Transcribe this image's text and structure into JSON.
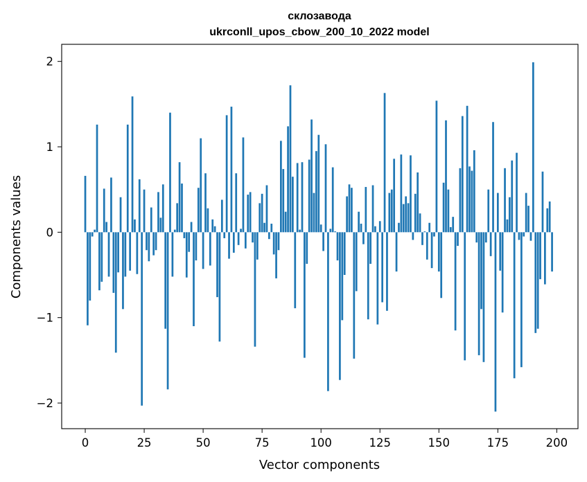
{
  "chart_data": {
    "type": "bar",
    "title_line1": "склозавода",
    "title_line2": "ukrconll_upos_cbow_200_10_2022 model",
    "xlabel": "Vector components",
    "ylabel": "Components values",
    "xlim": [
      -10,
      209
    ],
    "ylim": [
      -2.3,
      2.2
    ],
    "x_ticks": [
      0,
      25,
      50,
      75,
      100,
      125,
      150,
      175,
      200
    ],
    "x_tick_labels": [
      "0",
      "25",
      "50",
      "75",
      "100",
      "125",
      "150",
      "175",
      "200"
    ],
    "y_ticks": [
      -2,
      -1,
      0,
      1,
      2
    ],
    "y_tick_labels": [
      "−2",
      "−1",
      "0",
      "1",
      "2"
    ],
    "bar_color": "#1f77b4",
    "grid": false,
    "values": [
      0.66,
      -1.09,
      -0.8,
      -0.05,
      0.03,
      1.26,
      -0.68,
      -0.58,
      0.51,
      0.12,
      -0.52,
      0.64,
      -0.71,
      -1.41,
      -0.47,
      0.41,
      -0.9,
      -0.52,
      1.26,
      -0.45,
      1.59,
      0.15,
      -0.49,
      0.62,
      -2.03,
      0.5,
      -0.21,
      -0.34,
      0.29,
      -0.27,
      -0.21,
      0.47,
      0.17,
      0.56,
      -1.13,
      -1.84,
      1.4,
      -0.52,
      0.03,
      0.34,
      0.82,
      0.57,
      -0.07,
      -0.53,
      -0.23,
      0.12,
      -1.1,
      -0.33,
      0.52,
      1.1,
      -0.43,
      0.69,
      0.28,
      -0.39,
      0.15,
      0.07,
      -0.76,
      -1.28,
      0.38,
      -0.07,
      1.37,
      -0.31,
      1.47,
      -0.24,
      0.69,
      -0.15,
      0.04,
      1.11,
      -0.19,
      0.44,
      0.47,
      -0.12,
      -1.34,
      -0.32,
      0.34,
      0.45,
      0.11,
      0.55,
      -0.08,
      0.1,
      -0.26,
      -0.54,
      -0.21,
      1.07,
      0.74,
      0.24,
      1.24,
      1.72,
      0.65,
      -0.89,
      0.81,
      0.03,
      0.82,
      -1.47,
      -0.37,
      0.85,
      1.32,
      0.46,
      0.95,
      1.14,
      0.09,
      -0.22,
      1.03,
      -1.86,
      0.04,
      0.76,
      0.01,
      -0.33,
      -1.73,
      -1.03,
      -0.5,
      0.42,
      0.56,
      0.52,
      -1.48,
      -0.69,
      0.24,
      0.1,
      -0.14,
      0.53,
      -1.02,
      -0.37,
      0.55,
      0.07,
      -1.08,
      0.13,
      -0.82,
      1.63,
      -0.92,
      0.46,
      0.5,
      0.86,
      -0.46,
      0.11,
      0.91,
      0.33,
      0.42,
      0.34,
      0.9,
      -0.09,
      0.45,
      0.7,
      0.22,
      -0.15,
      0.01,
      -0.32,
      0.11,
      -0.42,
      -0.05,
      1.54,
      -0.46,
      -0.77,
      0.58,
      1.31,
      0.5,
      0.06,
      0.18,
      -1.15,
      -0.16,
      0.75,
      1.36,
      -1.5,
      1.48,
      0.77,
      0.72,
      0.96,
      -0.12,
      -1.44,
      -0.9,
      -1.52,
      -0.12,
      0.5,
      -0.28,
      1.29,
      -2.1,
      0.46,
      -0.45,
      -0.94,
      0.75,
      0.15,
      0.41,
      0.84,
      -1.71,
      0.93,
      -0.09,
      -1.58,
      -0.05,
      0.46,
      0.31,
      -0.1,
      1.99,
      -1.18,
      -1.13,
      -0.55,
      0.71,
      -0.61,
      0.28,
      0.36,
      -0.46
    ]
  }
}
